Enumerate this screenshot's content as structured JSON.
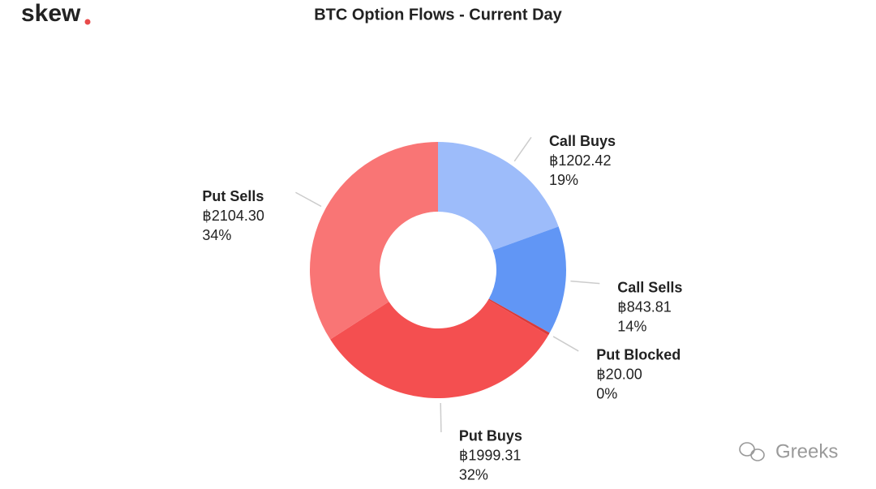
{
  "logo": "skew",
  "watermark": "Greeks",
  "chart_data": {
    "type": "donut",
    "title": "BTC Option Flows - Current Day",
    "categories": [
      "Call Buys",
      "Call Sells",
      "Put Blocked",
      "Put Buys",
      "Put Sells"
    ],
    "values": [
      1202.42,
      843.81,
      20.0,
      1999.31,
      2104.3
    ],
    "value_labels": [
      "฿1202.42",
      "฿843.81",
      "฿20.00",
      "฿1999.31",
      "฿2104.30"
    ],
    "percent_labels": [
      "19%",
      "14%",
      "0%",
      "32%",
      "34%"
    ],
    "colors": [
      "#9dbcfa",
      "#6196f5",
      "#d93a3a",
      "#f44f50",
      "#f97575"
    ]
  }
}
